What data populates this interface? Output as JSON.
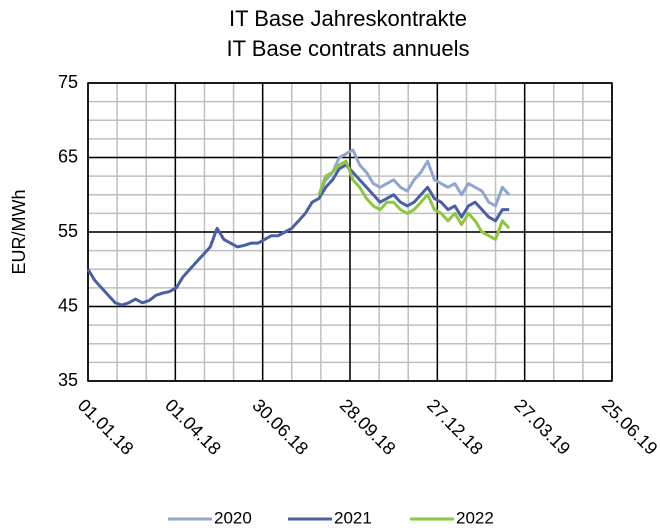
{
  "chart_data": {
    "type": "line",
    "title": [
      "IT Base Jahreskontrakte",
      "IT Base contrats annuels"
    ],
    "y_label": "EUR/MWh",
    "x": [
      "01.01.18",
      "08.01.18",
      "15.01.18",
      "22.01.18",
      "29.01.18",
      "05.02.18",
      "12.02.18",
      "19.02.18",
      "26.02.18",
      "05.03.18",
      "12.03.18",
      "19.03.18",
      "26.03.18",
      "02.04.18",
      "09.04.18",
      "16.04.18",
      "23.04.18",
      "30.04.18",
      "07.05.18",
      "14.05.18",
      "21.05.18",
      "28.05.18",
      "04.06.18",
      "11.06.18",
      "18.06.18",
      "25.06.18",
      "02.07.18",
      "09.07.18",
      "16.07.18",
      "23.07.18",
      "30.07.18",
      "06.08.18",
      "13.08.18",
      "20.08.18",
      "27.08.18",
      "03.09.18",
      "10.09.18",
      "17.09.18",
      "24.09.18",
      "01.10.18",
      "08.10.18",
      "15.10.18",
      "22.10.18",
      "29.10.18",
      "05.11.18",
      "12.11.18",
      "19.11.18",
      "26.11.18",
      "03.12.18",
      "10.12.18",
      "17.12.18",
      "24.12.18",
      "31.12.18",
      "07.01.19",
      "14.01.19",
      "21.01.19",
      "28.01.19",
      "04.02.19",
      "11.02.19",
      "18.02.19",
      "25.02.19",
      "04.03.19",
      "11.03.19"
    ],
    "series": [
      {
        "name": "2020",
        "color": "#8fa6d0",
        "values": [
          null,
          null,
          null,
          null,
          null,
          null,
          null,
          null,
          null,
          null,
          null,
          null,
          null,
          null,
          null,
          null,
          null,
          null,
          null,
          null,
          null,
          null,
          null,
          null,
          null,
          null,
          null,
          null,
          null,
          null,
          null,
          null,
          null,
          null,
          60,
          62,
          63,
          65,
          65.5,
          66,
          64,
          63,
          61.5,
          61,
          61.5,
          62,
          61,
          60.5,
          62,
          63,
          64.5,
          62,
          61.5,
          61,
          61.5,
          60,
          61.5,
          61,
          60.5,
          59,
          58.5,
          61,
          60
        ]
      },
      {
        "name": "2021",
        "color": "#4a5fa5",
        "values": [
          50,
          48.5,
          47.5,
          46.5,
          45.5,
          45.2,
          45.5,
          46,
          45.5,
          45.8,
          46.5,
          46.8,
          47,
          47.5,
          49,
          50,
          51,
          52,
          53,
          55.5,
          54,
          53.5,
          53,
          53.2,
          53.5,
          53.5,
          54,
          54.5,
          54.5,
          55,
          55.5,
          56.5,
          57.5,
          59,
          59.5,
          61,
          62,
          63.5,
          64,
          63,
          62,
          61,
          60,
          59,
          59.5,
          60,
          59,
          58.5,
          59,
          60,
          61,
          59.5,
          59,
          58,
          58.5,
          57,
          58.5,
          59,
          58,
          57,
          56.5,
          58,
          58
        ]
      },
      {
        "name": "2022",
        "color": "#8dc63f",
        "values": [
          null,
          null,
          null,
          null,
          null,
          null,
          null,
          null,
          null,
          null,
          null,
          null,
          null,
          null,
          null,
          null,
          null,
          null,
          null,
          null,
          null,
          null,
          null,
          null,
          null,
          null,
          null,
          null,
          null,
          null,
          null,
          null,
          null,
          null,
          60,
          62.5,
          63,
          64,
          64.5,
          62,
          61,
          59.5,
          58.5,
          58,
          59,
          59,
          58,
          57.5,
          58,
          59,
          60,
          58,
          57.5,
          56.5,
          57.5,
          56,
          57.5,
          56.5,
          55,
          54.5,
          54,
          56.5,
          55.5
        ]
      }
    ],
    "xlim": [
      "01.01.18",
      "25.06.19"
    ],
    "xticks": [
      "01.01.18",
      "01.04.18",
      "30.06.18",
      "28.09.18",
      "27.12.18",
      "27.03.19",
      "25.06.19"
    ],
    "ylim": [
      35,
      75
    ],
    "yticks": [
      35,
      45,
      55,
      65,
      75
    ],
    "grid": true,
    "minor_grid": {
      "x_days": 30,
      "y": 2.5
    },
    "legend": "bottom"
  }
}
